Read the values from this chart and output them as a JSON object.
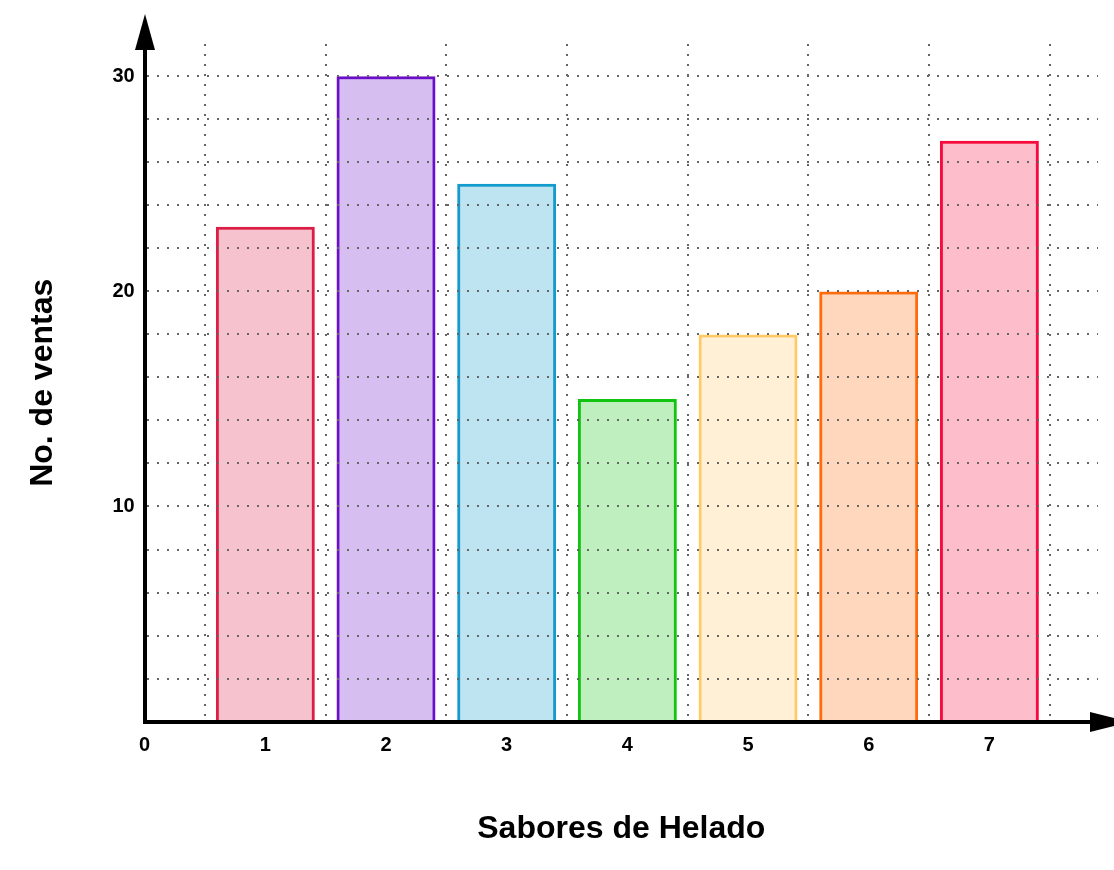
{
  "chart_data": {
    "type": "bar",
    "xlabel": "Sabores de Helado",
    "ylabel": "No. de ventas",
    "x": [
      1,
      2,
      3,
      4,
      5,
      6,
      7
    ],
    "values": [
      23,
      30,
      25,
      15,
      18,
      20,
      27
    ],
    "colors": [
      "#dc1e46",
      "#6a0ecc",
      "#129bcc",
      "#12c412",
      "#ffc966",
      "#ff6a0a",
      "#f70a3c"
    ],
    "xlim": [
      0,
      7.9
    ],
    "xticks": [
      0,
      1,
      2,
      3,
      4,
      5,
      6,
      7
    ],
    "ylim": [
      0,
      31.5
    ],
    "yticks": [
      {
        "value": 0,
        "label": null
      },
      {
        "value": 2,
        "label": null
      },
      {
        "value": 4,
        "label": null
      },
      {
        "value": 6,
        "label": null
      },
      {
        "value": 8,
        "label": null
      },
      10,
      {
        "value": 12,
        "label": null
      },
      {
        "value": 14,
        "label": null
      },
      {
        "value": 16,
        "label": null
      },
      {
        "value": 18,
        "label": null
      },
      20,
      {
        "value": 22,
        "label": null
      },
      {
        "value": 24,
        "label": null
      },
      {
        "value": 26,
        "label": null
      },
      {
        "value": 28,
        "label": null
      },
      30
    ],
    "grid": true,
    "legend": false
  }
}
